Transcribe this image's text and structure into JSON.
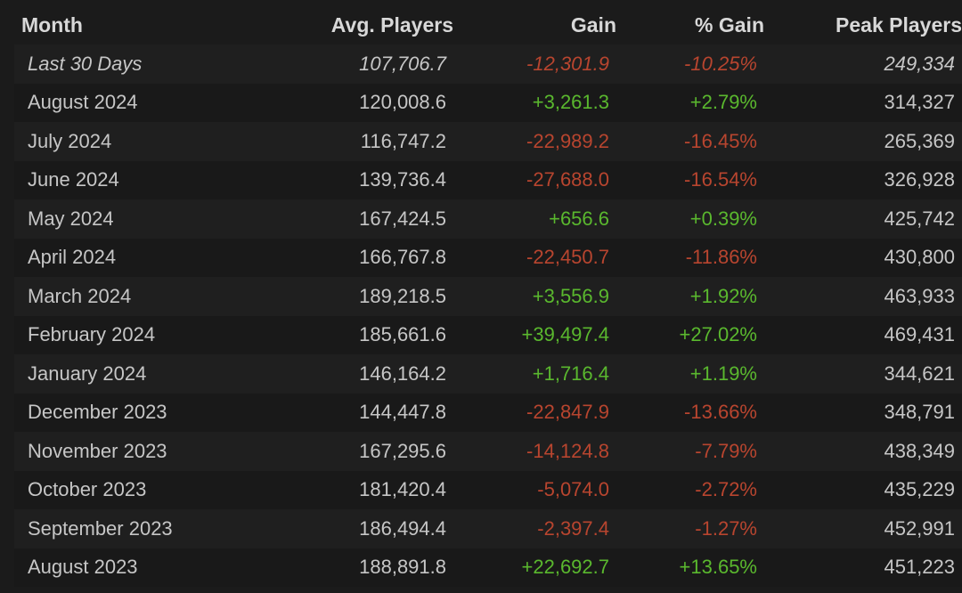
{
  "table": {
    "headers": [
      "Month",
      "Avg. Players",
      "Gain",
      "% Gain",
      "Peak Players"
    ],
    "rows": [
      {
        "month": "Last 30 Days",
        "avg": "107,706.7",
        "gain": "-12,301.9",
        "pct": "-10.25%",
        "peak": "249,334",
        "trend": "neg"
      },
      {
        "month": "August 2024",
        "avg": "120,008.6",
        "gain": "+3,261.3",
        "pct": "+2.79%",
        "peak": "314,327",
        "trend": "pos"
      },
      {
        "month": "July 2024",
        "avg": "116,747.2",
        "gain": "-22,989.2",
        "pct": "-16.45%",
        "peak": "265,369",
        "trend": "neg"
      },
      {
        "month": "June 2024",
        "avg": "139,736.4",
        "gain": "-27,688.0",
        "pct": "-16.54%",
        "peak": "326,928",
        "trend": "neg"
      },
      {
        "month": "May 2024",
        "avg": "167,424.5",
        "gain": "+656.6",
        "pct": "+0.39%",
        "peak": "425,742",
        "trend": "pos"
      },
      {
        "month": "April 2024",
        "avg": "166,767.8",
        "gain": "-22,450.7",
        "pct": "-11.86%",
        "peak": "430,800",
        "trend": "neg"
      },
      {
        "month": "March 2024",
        "avg": "189,218.5",
        "gain": "+3,556.9",
        "pct": "+1.92%",
        "peak": "463,933",
        "trend": "pos"
      },
      {
        "month": "February 2024",
        "avg": "185,661.6",
        "gain": "+39,497.4",
        "pct": "+27.02%",
        "peak": "469,431",
        "trend": "pos"
      },
      {
        "month": "January 2024",
        "avg": "146,164.2",
        "gain": "+1,716.4",
        "pct": "+1.19%",
        "peak": "344,621",
        "trend": "pos"
      },
      {
        "month": "December 2023",
        "avg": "144,447.8",
        "gain": "-22,847.9",
        "pct": "-13.66%",
        "peak": "348,791",
        "trend": "neg"
      },
      {
        "month": "November 2023",
        "avg": "167,295.6",
        "gain": "-14,124.8",
        "pct": "-7.79%",
        "peak": "438,349",
        "trend": "neg"
      },
      {
        "month": "October 2023",
        "avg": "181,420.4",
        "gain": "-5,074.0",
        "pct": "-2.72%",
        "peak": "435,229",
        "trend": "neg"
      },
      {
        "month": "September 2023",
        "avg": "186,494.4",
        "gain": "-2,397.4",
        "pct": "-1.27%",
        "peak": "452,991",
        "trend": "neg"
      },
      {
        "month": "August 2023",
        "avg": "188,891.8",
        "gain": "+22,692.7",
        "pct": "+13.65%",
        "peak": "451,223",
        "trend": "pos"
      }
    ]
  },
  "colors": {
    "background": "#1b1b1b",
    "row_odd": "#1f1f1f",
    "row_even": "#191919",
    "text": "#c6c6c6",
    "header_text": "#d8d8d8",
    "negative": "#b8452f",
    "positive": "#5ab82e"
  }
}
